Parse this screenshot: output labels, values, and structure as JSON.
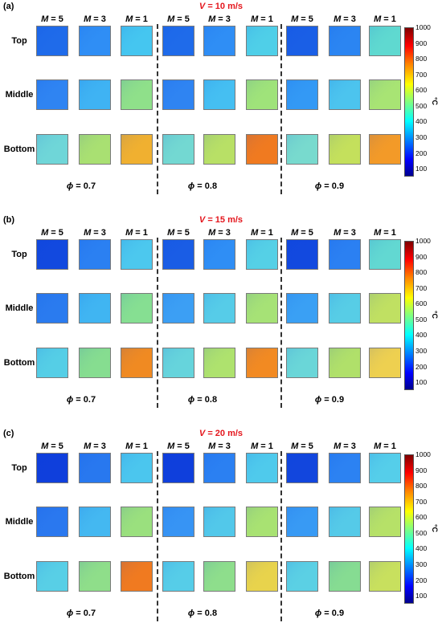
{
  "panels": [
    {
      "label": "(a)",
      "title": "V = 10 m/s",
      "title_var": "V",
      "title_rest": " = 10 m/s"
    },
    {
      "label": "(b)",
      "title": "V = 15 m/s",
      "title_var": "V",
      "title_rest": " = 15 m/s"
    },
    {
      "label": "(c)",
      "title": "V = 20 m/s",
      "title_var": "V",
      "title_rest": " = 20 m/s"
    }
  ],
  "columns": [
    "M = 5",
    "M = 3",
    "M = 1",
    "M = 5",
    "M = 3",
    "M = 1",
    "M = 5",
    "M = 3",
    "M = 1"
  ],
  "rows": [
    "Top",
    "Middle",
    "Bottom"
  ],
  "groups": [
    "ϕ = 0.7",
    "ϕ = 0.8",
    "ϕ = 0.9"
  ],
  "colorbar": {
    "ticks": [
      "1000",
      "900",
      "800",
      "700",
      "600",
      "500",
      "400",
      "300",
      "200",
      "100"
    ],
    "unit": "°C",
    "colors": [
      "#00008f",
      "#0000ff",
      "#0080ff",
      "#00ffff",
      "#80ff80",
      "#ffff00",
      "#ff8000",
      "#ff0000",
      "#800000"
    ]
  },
  "tile_colors": {
    "a": [
      [
        "#1f6bea",
        "#2f8ef5",
        "#45c6f0",
        "#1f6bea",
        "#2f8ef5",
        "#4fcfe8",
        "#1a5fe6",
        "#2b85f2",
        "#5fd9d0"
      ],
      [
        "#2f84f2",
        "#3fb3f3",
        "#8fe08a",
        "#2f84f2",
        "#45bff2",
        "#9fe37a",
        "#3399f5",
        "#4cc4ee",
        "#a8e474"
      ],
      [
        "#6fd6d8",
        "#a9e072",
        "#f0b030",
        "#73d8d2",
        "#b8e066",
        "#f07a20",
        "#78dace",
        "#c4e05c",
        "#f39a28"
      ]
    ],
    "b": [
      [
        "#1249df",
        "#2b80f2",
        "#4cc8ee",
        "#1a5de5",
        "#2f8ef5",
        "#55d0e6",
        "#1249df",
        "#2b80f2",
        "#62d8d2"
      ],
      [
        "#2a7bef",
        "#40b5f2",
        "#86df92",
        "#3c9ff4",
        "#56cce8",
        "#a6e276",
        "#3aa0f4",
        "#57cde6",
        "#c0e062"
      ],
      [
        "#55cee6",
        "#86dd90",
        "#f08a22",
        "#66d4dc",
        "#aee26e",
        "#f28a22",
        "#6ad6d8",
        "#b0e06a",
        "#eed050"
      ]
    ],
    "c": [
      [
        "#0f3fdc",
        "#2878ef",
        "#4bc6ee",
        "#0f3fdc",
        "#2b80f2",
        "#4fcaec",
        "#1246dd",
        "#2c82f2",
        "#55ceea"
      ],
      [
        "#2a78ef",
        "#44b8f1",
        "#9ae07e",
        "#3794f4",
        "#52c8ea",
        "#a8e272",
        "#389af4",
        "#55cae8",
        "#b6e168"
      ],
      [
        "#58cfe6",
        "#8fde8a",
        "#f07a20",
        "#56cde8",
        "#8ede8c",
        "#e8d34c",
        "#5bd0e4",
        "#86dc92",
        "#c8e05e"
      ]
    ]
  }
}
